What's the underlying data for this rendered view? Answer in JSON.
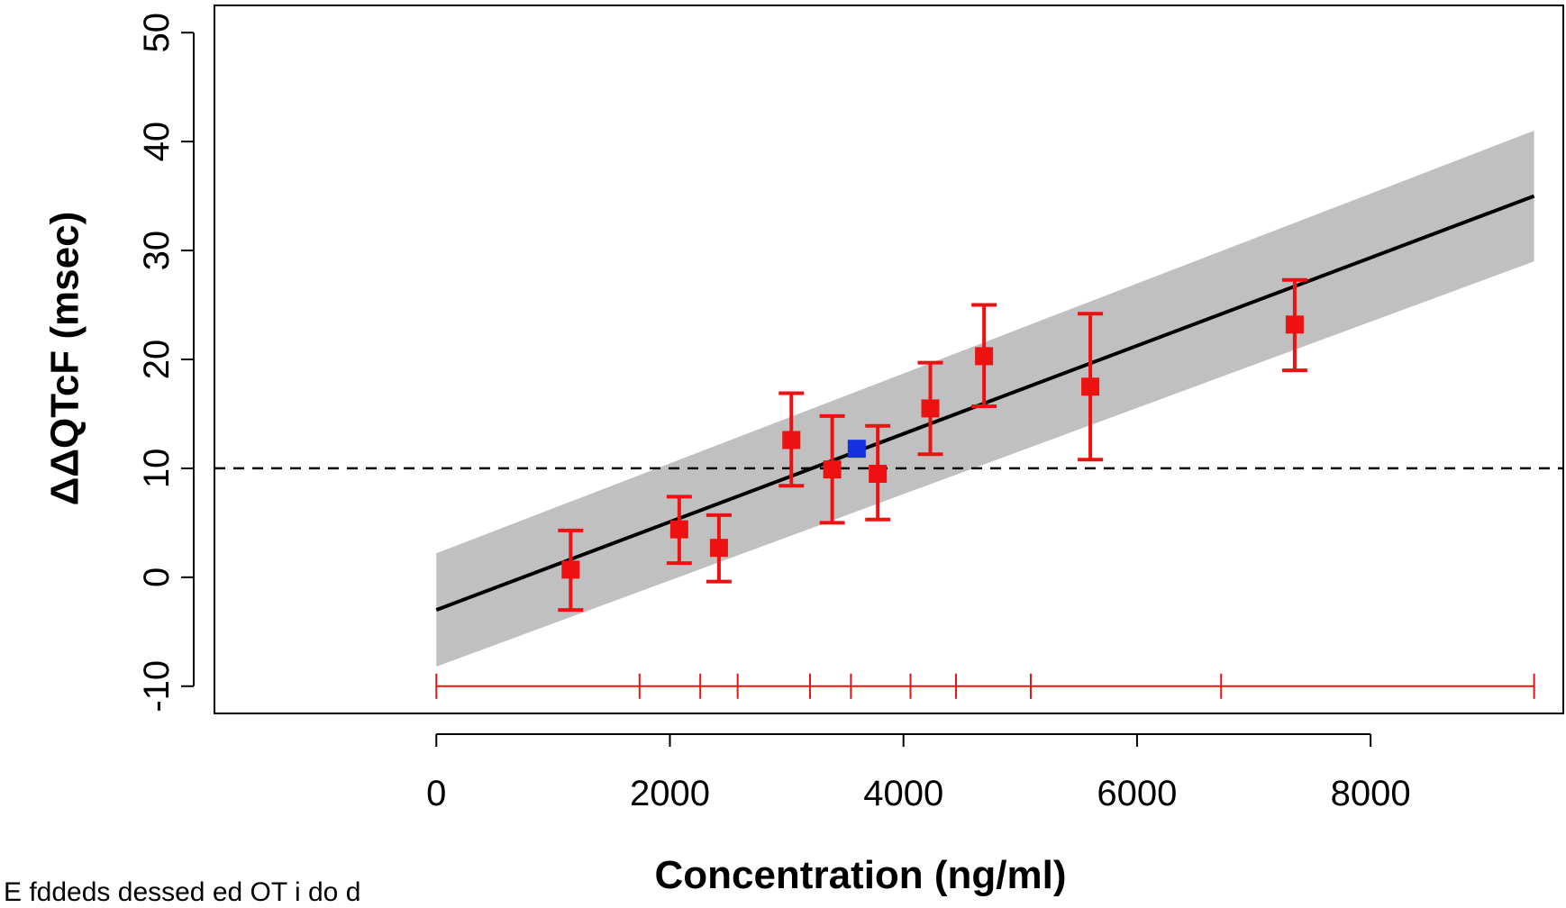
{
  "chart_data": {
    "type": "scatter",
    "title": "",
    "xlabel": "Concentration (ng/ml)",
    "ylabel": "ΔΔQTcF (msec)",
    "xlim": [
      -1900,
      9650
    ],
    "ylim": [
      -12.5,
      52.5
    ],
    "x_ticks": [
      0,
      2000,
      4000,
      6000,
      8000
    ],
    "x_tick_labels": [
      "0",
      "2000",
      "4000",
      "6000",
      "8000"
    ],
    "y_ticks": [
      -10,
      0,
      10,
      20,
      30,
      40,
      50
    ],
    "y_tick_labels": [
      "-10",
      "0",
      "10",
      "20",
      "30",
      "40",
      "50"
    ],
    "grid": false,
    "legend": "none",
    "colors": {
      "observed": "#ee1111",
      "highlight": "#1530e0",
      "fit_line": "#000000",
      "ci_band": "#c0c0c0",
      "reference_line": "#000000",
      "decile_bar": "#ee1111"
    },
    "regression": {
      "x": [
        0,
        9400
      ],
      "y": [
        -3.0,
        35.0
      ],
      "ci_lower": [
        -8.2,
        29.0
      ],
      "ci_upper": [
        2.2,
        41.0
      ]
    },
    "reference_line_y": 10,
    "points": [
      {
        "x": 1150,
        "y": 0.7,
        "lower": -3.0,
        "upper": 4.3
      },
      {
        "x": 2080,
        "y": 4.4,
        "lower": 1.3,
        "upper": 7.4
      },
      {
        "x": 2420,
        "y": 2.7,
        "lower": -0.4,
        "upper": 5.7
      },
      {
        "x": 3040,
        "y": 12.6,
        "lower": 8.4,
        "upper": 16.9
      },
      {
        "x": 3390,
        "y": 9.9,
        "lower": 5.0,
        "upper": 14.8
      },
      {
        "x": 3780,
        "y": 9.5,
        "lower": 5.3,
        "upper": 13.9
      },
      {
        "x": 4230,
        "y": 15.5,
        "lower": 11.3,
        "upper": 19.7
      },
      {
        "x": 4690,
        "y": 20.3,
        "lower": 15.7,
        "upper": 25.0
      },
      {
        "x": 5600,
        "y": 17.5,
        "lower": 10.8,
        "upper": 24.2
      },
      {
        "x": 7350,
        "y": 23.2,
        "lower": 19.0,
        "upper": 27.3
      }
    ],
    "highlight_point": {
      "x": 3600,
      "y": 11.8
    },
    "decile_bar": {
      "y": -10,
      "bounds": [
        0,
        1740,
        2260,
        2580,
        3200,
        3550,
        4060,
        4450,
        5090,
        6720,
        9400
      ]
    }
  },
  "footnote": "E fddeds dessed ed OT i do d"
}
